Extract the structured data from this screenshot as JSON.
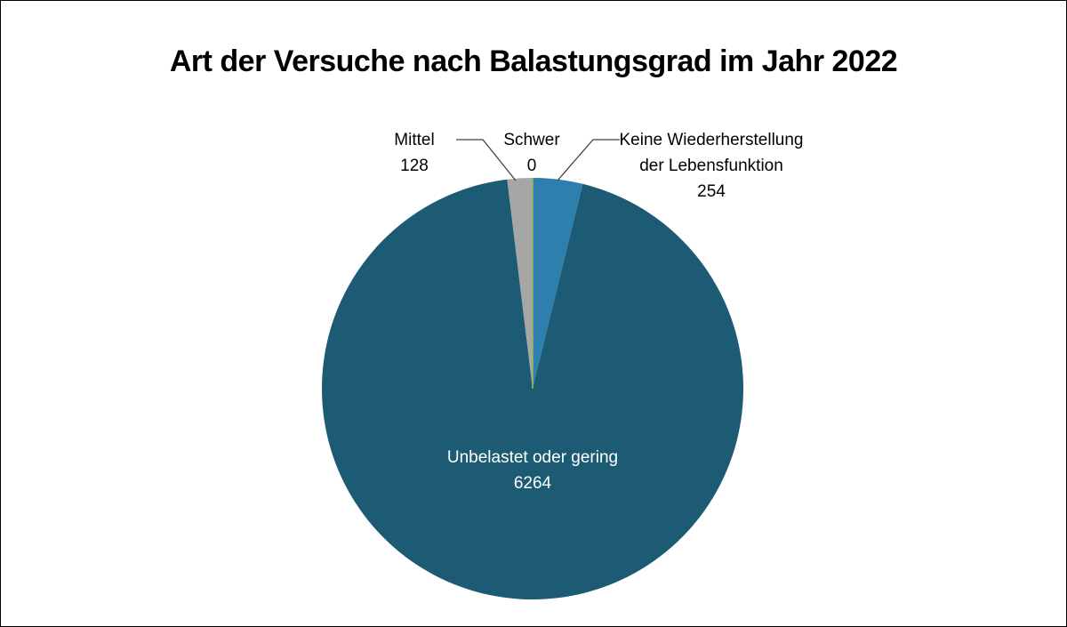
{
  "chart_data": {
    "type": "pie",
    "title": "Art der Versuche nach Balastungsgrad im Jahr 2022",
    "slices": [
      {
        "label": "Keine Wiederherstellung der Lebensfunktion",
        "label_lines": [
          "Keine Wiederherstellung",
          "der Lebensfunktion"
        ],
        "value": 254,
        "value_text": "254",
        "color": "#2e7fae",
        "label_color": "#000000"
      },
      {
        "label": "Unbelastet oder gering",
        "label_lines": [
          "Unbelastet oder gering"
        ],
        "value": 6264,
        "value_text": "6264",
        "color": "#1c5b73",
        "label_color": "#ffffff"
      },
      {
        "label": "Mittel",
        "label_lines": [
          "Mittel"
        ],
        "value": 128,
        "value_text": "128",
        "color": "#a6a6a6",
        "label_color": "#000000"
      },
      {
        "label": "Schwer",
        "label_lines": [
          "Schwer"
        ],
        "value": 0,
        "value_text": "0",
        "color": "#9bbb59",
        "label_color": "#000000"
      }
    ],
    "start_angle": "12 o'clock",
    "direction": "clockwise",
    "legend": "none"
  }
}
